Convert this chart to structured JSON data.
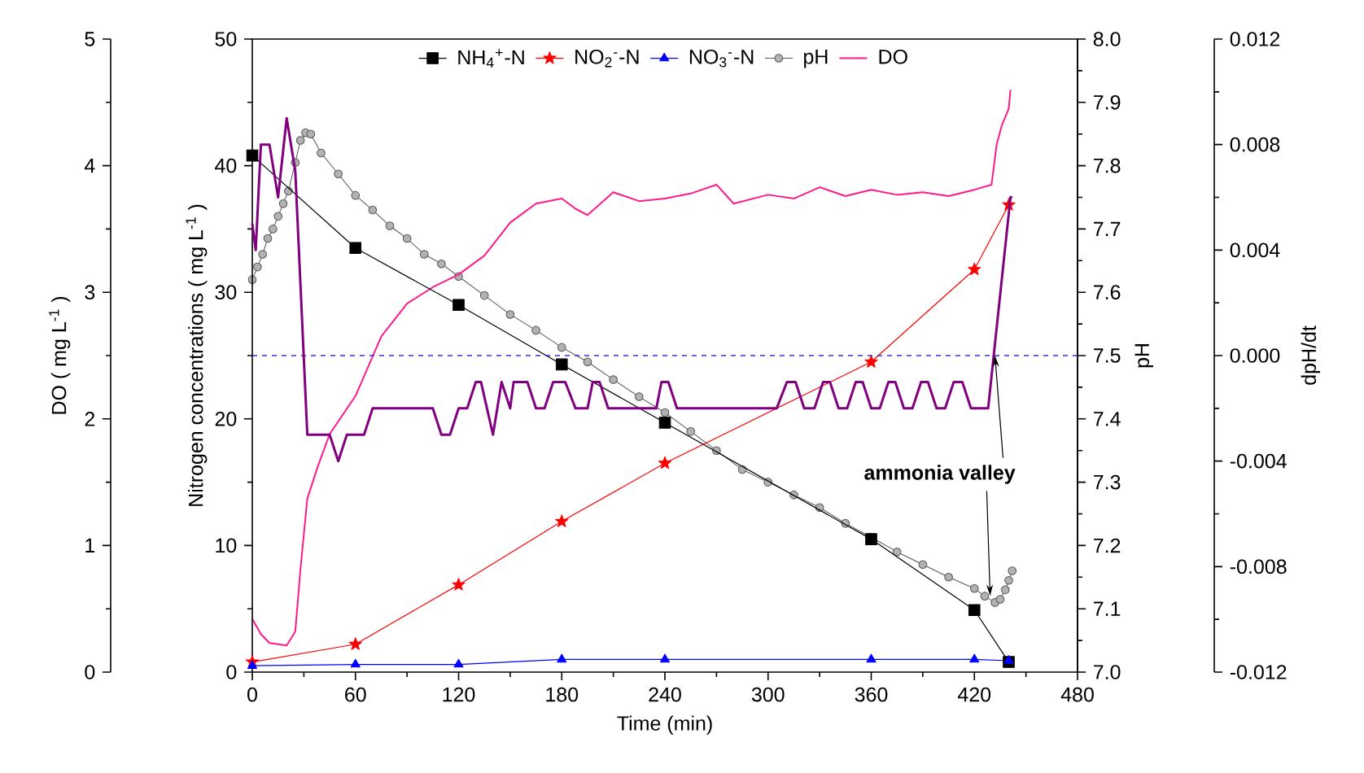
{
  "chart_data": [
    {
      "type": "line",
      "xlabel": "Time (min)",
      "ylabel": "Nitrogen concentrations ( mg L$^{-1}$ )",
      "y2label": "pH",
      "y3label": "DO ( mg L$^{-1}$ )",
      "xlim": [
        0,
        480
      ],
      "xticks": [
        0,
        60,
        120,
        180,
        240,
        300,
        360,
        420,
        480
      ],
      "ylim": [
        0,
        50
      ],
      "yticks": [
        0,
        10,
        20,
        30,
        40,
        50
      ],
      "y2lim": [
        7.0,
        8.0
      ],
      "y2ticks": [
        {
          "value": 7.0,
          "label": "7.0"
        },
        {
          "value": 7.1,
          "label": "7.1"
        },
        {
          "value": 7.2,
          "label": "7.2"
        },
        {
          "value": 7.3,
          "label": "7.3"
        },
        {
          "value": 7.4,
          "label": "7.4"
        },
        {
          "value": 7.5,
          "label": "7.5"
        },
        {
          "value": 7.6,
          "label": "7.6"
        },
        {
          "value": 7.7,
          "label": "7.7"
        },
        {
          "value": 7.8,
          "label": "7.8"
        },
        {
          "value": 7.9,
          "label": "7.9"
        },
        {
          "value": 8.0,
          "label": "8.0"
        }
      ],
      "y3lim": [
        0,
        5
      ],
      "y3ticks": [
        0,
        1,
        2,
        3,
        4,
        5
      ],
      "legend": "top",
      "series": [
        {
          "name": "NH$_{4}$$^{+}$-N",
          "color": "#000000",
          "marker": "square",
          "x": [
            0,
            60,
            120,
            180,
            240,
            360,
            420,
            440
          ],
          "values": [
            40.8,
            33.5,
            29.0,
            24.3,
            19.7,
            10.5,
            4.9,
            0.8
          ]
        },
        {
          "name": "NO$_{2}$$^{-}$-N",
          "color": "#ff0000",
          "marker": "star",
          "x": [
            0,
            60,
            120,
            180,
            240,
            360,
            420,
            440
          ],
          "values": [
            0.8,
            2.2,
            6.9,
            11.9,
            16.5,
            24.5,
            31.8,
            36.9
          ]
        },
        {
          "name": "NO$_{3}$$^{-}$-N",
          "color": "#0000ff",
          "marker": "triangle",
          "x": [
            0,
            60,
            120,
            180,
            240,
            360,
            420,
            440
          ],
          "values": [
            0.5,
            0.6,
            0.6,
            1.0,
            1.0,
            1.0,
            1.0,
            0.9
          ]
        },
        {
          "name": "pH",
          "color": "#555555",
          "marker": "circle",
          "axis": "y2",
          "x": [
            0,
            3,
            6,
            9,
            12,
            15,
            18,
            21,
            25,
            28,
            31,
            34,
            40,
            50,
            60,
            70,
            80,
            90,
            100,
            110,
            120,
            135,
            150,
            165,
            180,
            195,
            210,
            225,
            240,
            255,
            270,
            285,
            300,
            315,
            330,
            345,
            360,
            375,
            390,
            405,
            420,
            426,
            432,
            435,
            438,
            440,
            442
          ],
          "values": [
            7.62,
            7.64,
            7.66,
            7.685,
            7.7,
            7.72,
            7.74,
            7.76,
            7.805,
            7.84,
            7.852,
            7.85,
            7.82,
            7.787,
            7.753,
            7.73,
            7.705,
            7.685,
            7.66,
            7.645,
            7.625,
            7.595,
            7.565,
            7.54,
            7.513,
            7.49,
            7.462,
            7.435,
            7.41,
            7.38,
            7.35,
            7.32,
            7.3,
            7.28,
            7.26,
            7.235,
            7.213,
            7.19,
            7.17,
            7.15,
            7.132,
            7.12,
            7.11,
            7.115,
            7.13,
            7.145,
            7.16
          ]
        },
        {
          "name": "DO",
          "color": "#ff1a8c",
          "marker": "none",
          "axis": "y3",
          "x": [
            0,
            5,
            10,
            20,
            25,
            28,
            32,
            38,
            45,
            60,
            75,
            90,
            105,
            120,
            135,
            150,
            165,
            180,
            188,
            195,
            210,
            225,
            240,
            255,
            270,
            280,
            300,
            315,
            330,
            345,
            360,
            375,
            390,
            405,
            420,
            430,
            433,
            436,
            440,
            441
          ],
          "values": [
            0.42,
            0.3,
            0.23,
            0.21,
            0.32,
            0.81,
            1.37,
            1.62,
            1.88,
            2.18,
            2.65,
            2.91,
            3.04,
            3.14,
            3.29,
            3.55,
            3.7,
            3.74,
            3.66,
            3.61,
            3.79,
            3.72,
            3.74,
            3.78,
            3.85,
            3.7,
            3.77,
            3.74,
            3.83,
            3.76,
            3.81,
            3.77,
            3.79,
            3.76,
            3.81,
            3.85,
            4.17,
            4.32,
            4.45,
            4.6
          ]
        }
      ]
    },
    {
      "type": "line",
      "ylabel": "dpH/dt",
      "xlim": [
        0,
        480
      ],
      "ylim": [
        -0.012,
        0.012
      ],
      "tick_labels": "y",
      "yticks": [
        {
          "value": -0.012,
          "label": "-0.012"
        },
        {
          "value": -0.008,
          "label": "-0.008"
        },
        {
          "value": -0.004,
          "label": "-0.004"
        },
        {
          "value": 0,
          "label": "0.000"
        },
        {
          "value": 0.004,
          "label": "0.004"
        },
        {
          "value": 0.008,
          "label": "0.008"
        },
        {
          "value": 0.012,
          "label": "0.012"
        }
      ],
      "series": [
        {
          "color": "#800080",
          "marker": "none",
          "x": [
            0,
            2,
            5,
            10,
            15,
            20,
            25,
            32,
            45,
            50,
            55,
            65,
            70,
            105,
            110,
            115,
            120,
            125,
            130,
            133,
            140,
            145,
            150,
            152,
            160,
            165,
            170,
            175,
            182,
            188,
            195,
            198,
            202,
            207,
            235,
            238,
            242,
            247,
            305,
            311,
            316,
            321,
            327,
            332,
            336,
            341,
            346,
            351,
            355,
            360,
            365,
            370,
            374,
            379,
            384,
            389,
            393,
            398,
            403,
            408,
            413,
            418,
            428,
            441,
            442
          ],
          "values": [
            0.005,
            0.004,
            0.008,
            0.008,
            0.006,
            0.009,
            0.007,
            -0.003,
            -0.003,
            -0.004,
            -0.003,
            -0.003,
            -0.002,
            -0.002,
            -0.003,
            -0.003,
            -0.002,
            -0.002,
            -0.001,
            -0.001,
            -0.003,
            -0.001,
            -0.002,
            -0.001,
            -0.001,
            -0.002,
            -0.002,
            -0.001,
            -0.001,
            -0.002,
            -0.002,
            -0.001,
            -0.001,
            -0.002,
            -0.002,
            -0.001,
            -0.001,
            -0.002,
            -0.002,
            -0.001,
            -0.001,
            -0.002,
            -0.002,
            -0.001,
            -0.001,
            -0.002,
            -0.002,
            -0.001,
            -0.001,
            -0.002,
            -0.002,
            -0.001,
            -0.001,
            -0.002,
            -0.002,
            -0.001,
            -0.001,
            -0.002,
            -0.002,
            -0.001,
            -0.001,
            -0.002,
            -0.002,
            0.006,
            0.006
          ]
        }
      ],
      "ref_lines": [
        {
          "axis": "y",
          "value": 0,
          "color": "#3333cc",
          "line_style": "dashed"
        }
      ],
      "annotations": [
        {
          "text": "ammonia valley",
          "x": 432,
          "y": 0
        }
      ]
    }
  ]
}
